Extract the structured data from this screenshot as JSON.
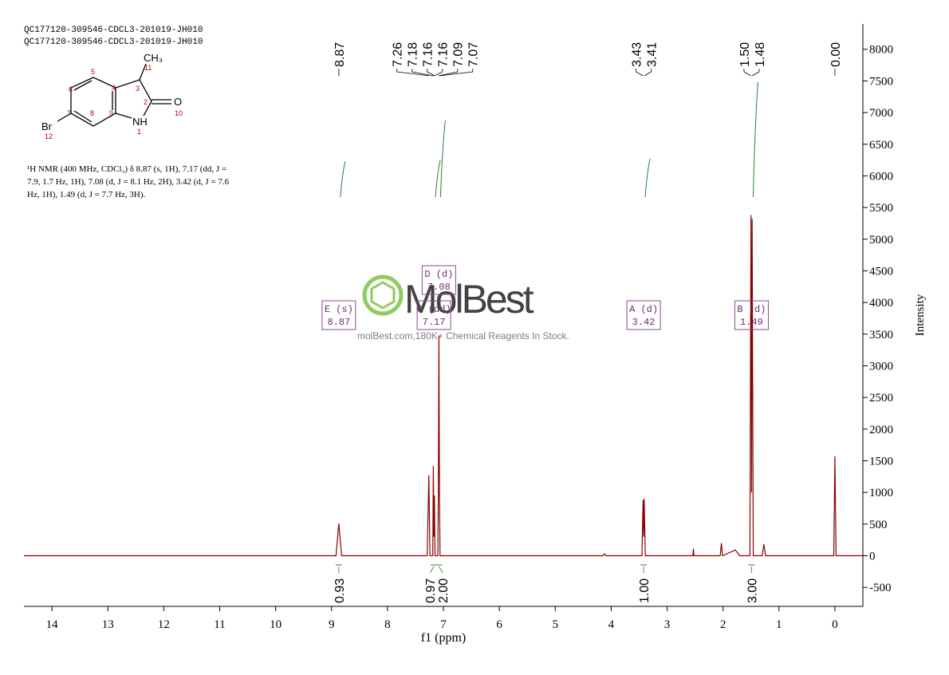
{
  "header": {
    "lines": [
      "QC177120-309546-CDCL3-201019-JH010",
      "QC177120-309546-CDCL3-201019-JH010"
    ]
  },
  "structure": {
    "atoms": [
      "CH₃",
      "O",
      "NH",
      "Br"
    ],
    "numbers": [
      "11",
      "3",
      "5",
      "4",
      "2",
      "10",
      "6",
      "7",
      "9",
      "8",
      "1",
      "12"
    ]
  },
  "description": {
    "lines": [
      "¹H NMR (400 MHz, CDCl₃) δ 8.87 (s, 1H), 7.17 (dd, J =",
      "7.9, 1.7 Hz, 1H), 7.08 (d, J = 8.1 Hz, 2H), 3.42 (d, J = 7.6",
      "Hz, 1H), 1.49 (d, J = 7.7 Hz, 3H)."
    ]
  },
  "watermark": {
    "logo": "MolBest",
    "text": "molBest.com,180K+ Chemical Reagents In Stock."
  },
  "chart_data": {
    "type": "line",
    "x_label": "f1 (ppm)",
    "y_label": "Intensity",
    "xlim": [
      14.5,
      -0.5
    ],
    "xticks": [
      14,
      13,
      12,
      11,
      10,
      9,
      8,
      7,
      6,
      5,
      4,
      3,
      2,
      1,
      0
    ],
    "ylim": [
      -800,
      8400
    ],
    "yticks": [
      -500,
      0,
      500,
      1000,
      1500,
      2000,
      2500,
      3000,
      3500,
      4000,
      4500,
      5000,
      5500,
      6000,
      6500,
      7000,
      7500,
      8000
    ],
    "series": [
      {
        "color": "#8b0000",
        "x": [
          14.5,
          8.92,
          8.87,
          8.82,
          7.29,
          7.26,
          7.24,
          7.19,
          7.18,
          7.17,
          7.16,
          7.15,
          7.1,
          7.09,
          7.08,
          7.07,
          7.06,
          4.15,
          4.12,
          4.09,
          3.45,
          3.43,
          3.42,
          3.41,
          3.39,
          2.54,
          2.53,
          2.52,
          2.05,
          2.03,
          2.01,
          1.78,
          1.7,
          1.52,
          1.5,
          1.49,
          1.48,
          1.46,
          1.3,
          1.27,
          1.24,
          0.02,
          0.0,
          -0.02,
          -0.5
        ],
        "values": [
          0,
          0,
          510,
          0,
          0,
          1270,
          0,
          0,
          1420,
          300,
          950,
          0,
          0,
          1000,
          3470,
          1000,
          0,
          0,
          30,
          0,
          0,
          880,
          300,
          900,
          0,
          0,
          110,
          0,
          0,
          200,
          0,
          90,
          0,
          0,
          5380,
          1000,
          5320,
          0,
          0,
          180,
          0,
          0,
          1570,
          0,
          0
        ]
      }
    ],
    "peak_labels": [
      {
        "value": 8.87,
        "label": "8.87"
      },
      {
        "value": 7.26,
        "label": "7.26"
      },
      {
        "value": 7.18,
        "label": "7.18"
      },
      {
        "value": 7.16,
        "label": "7.16"
      },
      {
        "value": 7.16,
        "label": "7.16"
      },
      {
        "value": 7.09,
        "label": "7.09"
      },
      {
        "value": 7.07,
        "label": "7.07"
      },
      {
        "value": 3.43,
        "label": "3.43"
      },
      {
        "value": 3.41,
        "label": "3.41"
      },
      {
        "value": 1.5,
        "label": "1.50"
      },
      {
        "value": 1.48,
        "label": "1.48"
      },
      {
        "value": 0.0,
        "label": "0.00"
      }
    ],
    "integrals": [
      {
        "x": 8.87,
        "value": 0.93,
        "label": "0.93"
      },
      {
        "x": 7.17,
        "value": 0.97,
        "label": "0.97"
      },
      {
        "x": 7.08,
        "value": 2,
        "label": "2.00"
      },
      {
        "x": 3.42,
        "value": 1,
        "label": "1.00"
      },
      {
        "x": 1.49,
        "value": 3,
        "label": "3.00"
      }
    ],
    "multiplets": [
      {
        "name": "E (s)",
        "value": 8.87
      },
      {
        "name": "C (dd)",
        "value": 7.17
      },
      {
        "name": "D (d)",
        "value": 7.08
      },
      {
        "name": "A (d)",
        "value": 3.42
      },
      {
        "name": "B (d)",
        "value": 1.49
      }
    ]
  }
}
